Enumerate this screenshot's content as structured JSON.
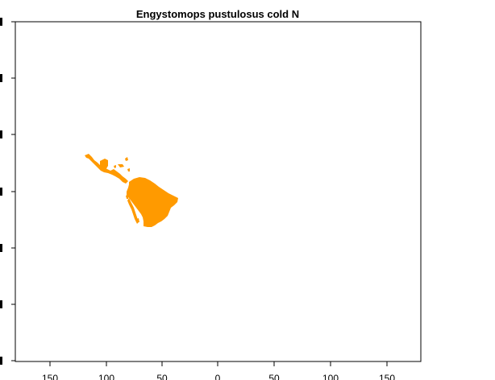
{
  "title": "Engystomops pustulosus cold N",
  "colors": {
    "range": "#ff9a00",
    "frame": "#000000",
    "background": "#ffffff"
  },
  "x_axis": {
    "ticks": [
      150,
      100,
      50,
      0,
      50,
      100,
      150
    ]
  },
  "range_regions": [
    "mexico-central-america",
    "caribbean-islands",
    "south-america-north",
    "andean-strip"
  ]
}
